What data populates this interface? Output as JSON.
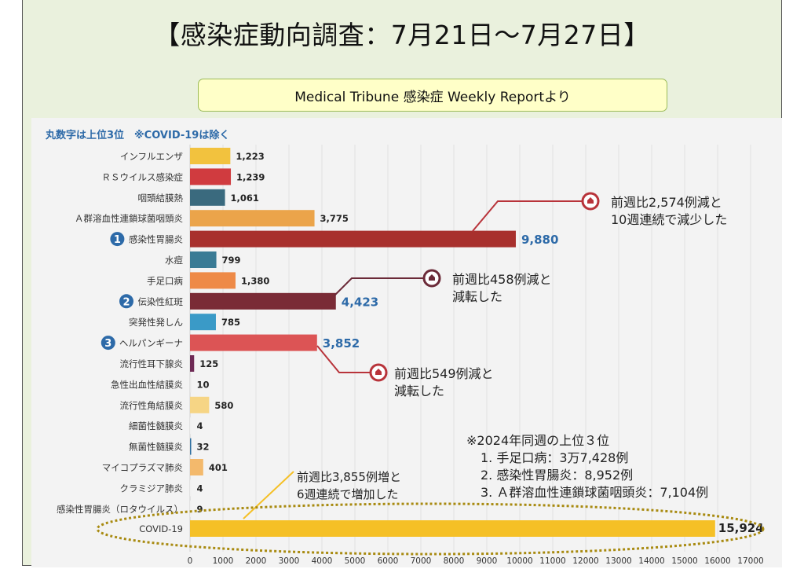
{
  "header": {
    "title": "【感染症動向調査：7月21日～7月27日】",
    "subtitle": "Medical Tribune 感染症 Weekly Reportより"
  },
  "chart_data": {
    "type": "bar",
    "orientation": "horizontal",
    "note": "丸数字は上位3位　※COVID-19は除く",
    "categories": [
      "インフルエンザ",
      "ＲＳウイルス感染症",
      "咽頭結膜熱",
      "Ａ群溶血性連鎖球菌咽頭炎",
      "感染性胃腸炎",
      "水痘",
      "手足口病",
      "伝染性紅斑",
      "突発性発しん",
      "ヘルパンギーナ",
      "流行性耳下腺炎",
      "急性出血性結膜炎",
      "流行性角結膜炎",
      "細菌性髄膜炎",
      "無菌性髄膜炎",
      "マイコプラズマ肺炎",
      "クラミジア肺炎",
      "感染性胃腸炎（ロタウイルス）",
      "COVID-19"
    ],
    "values": [
      1223,
      1239,
      1061,
      3775,
      9880,
      799,
      1380,
      4423,
      785,
      3852,
      125,
      10,
      580,
      4,
      32,
      401,
      4,
      9,
      15924
    ],
    "value_labels": [
      "1,223",
      "1,239",
      "1,061",
      "3,775",
      "9,880",
      "799",
      "1,380",
      "4,423",
      "785",
      "3,852",
      "125",
      "10",
      "580",
      "4",
      "32",
      "401",
      "4",
      "9",
      "15,924"
    ],
    "colors": [
      "#f2c23e",
      "#d03b3f",
      "#3a6a7e",
      "#eba44a",
      "#a8302d",
      "#3a7b95",
      "#ee8a47",
      "#7a2b36",
      "#3a9ac7",
      "#dc5455",
      "#6e2a55",
      "#e8e8e8",
      "#f6d585",
      "#f0f0f0",
      "#2e6fa0",
      "#f3b96c",
      "#f0f0f0",
      "#f0f0f0",
      "#f5c026"
    ],
    "rank_badges": [
      {
        "category_index": 4,
        "label": "1"
      },
      {
        "category_index": 7,
        "label": "2"
      },
      {
        "category_index": 9,
        "label": "3"
      }
    ],
    "highlight_value_indices": [
      4,
      7,
      9
    ],
    "x_ticks": [
      0,
      1000,
      2000,
      3000,
      4000,
      5000,
      6000,
      7000,
      8000,
      9000,
      10000,
      11000,
      12000,
      13000,
      14000,
      15000,
      16000,
      17000
    ],
    "xlim": [
      0,
      17000
    ],
    "annotations": [
      {
        "text_lines": [
          "前週比2,574例減と",
          "10週連続で減少した"
        ],
        "target_index": 4
      },
      {
        "text_lines": [
          "前週比458例減と",
          "減転した"
        ],
        "target_index": 7
      },
      {
        "text_lines": [
          "前週比549例減と",
          "減転した"
        ],
        "target_index": 9
      },
      {
        "text_lines": [
          "前週比3,855例増と",
          "6週連続で増加した"
        ],
        "target_index": 18
      }
    ],
    "comparison": {
      "heading": "※2024年同週の上位３位",
      "items": [
        "1. 手足口病：3万7,428例",
        "2. 感染性胃腸炎：8,952例",
        "3. Ａ群溶血性連鎖球菌咽頭炎：7,104例"
      ]
    }
  },
  "colors": {
    "annotation_line": "#b8333a",
    "annotation_line_dark": "#6b2a38",
    "covid_callout": "#f5c026",
    "ellipse_dotted": "#a88a10",
    "badge": "#2d6aa8",
    "panel_bg": "#eaf1dd"
  }
}
